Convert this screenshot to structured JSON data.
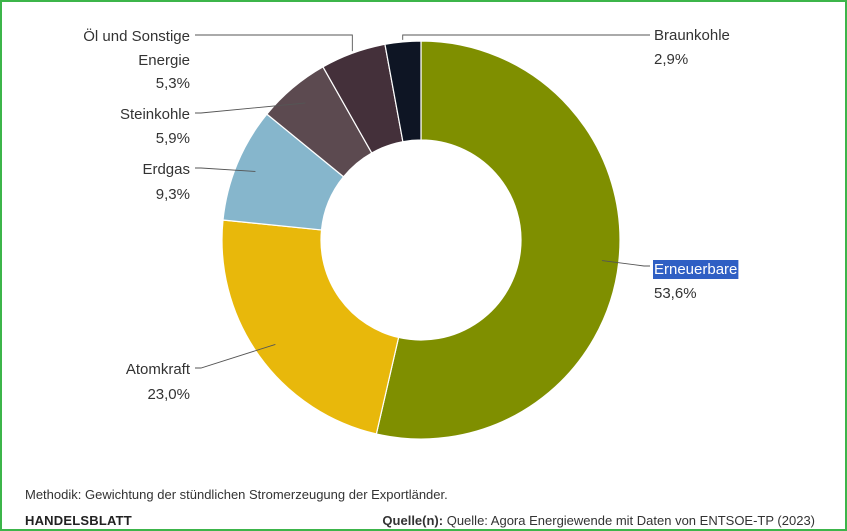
{
  "chart_data": {
    "type": "pie",
    "variant": "donut",
    "title": "",
    "slices": [
      {
        "name": "Erneuerbare",
        "value": 53.6,
        "label": "53,6%",
        "color": "#7f8f00",
        "highlighted": true
      },
      {
        "name": "Atomkraft",
        "value": 23.0,
        "label": "23,0%",
        "color": "#e8b80b"
      },
      {
        "name": "Erdgas",
        "value": 9.3,
        "label": "9,3%",
        "color": "#86b6cc"
      },
      {
        "name": "Steinkohle",
        "value": 5.9,
        "label": "5,9%",
        "color": "#5c4a50"
      },
      {
        "name": "Öl und Sonstige Energie",
        "value": 5.3,
        "label": "5,3%",
        "color": "#44303a"
      },
      {
        "name": "Braunkohle",
        "value": 2.9,
        "label": "2,9%",
        "color": "#0e1524"
      }
    ]
  },
  "footer": {
    "methodik": "Methodik: Gewichtung der stündlichen Stromerzeugung der Exportländer.",
    "brand": "HANDELSBLATT",
    "source_label": "Quelle(n):",
    "source_text": "Quelle: Agora Energiewende mit Daten von ENTSOE-TP (2023)"
  },
  "colors": {
    "frame_border": "#3cb54a",
    "highlight_bg": "#2f5fc4",
    "leader_line": "#555555"
  }
}
